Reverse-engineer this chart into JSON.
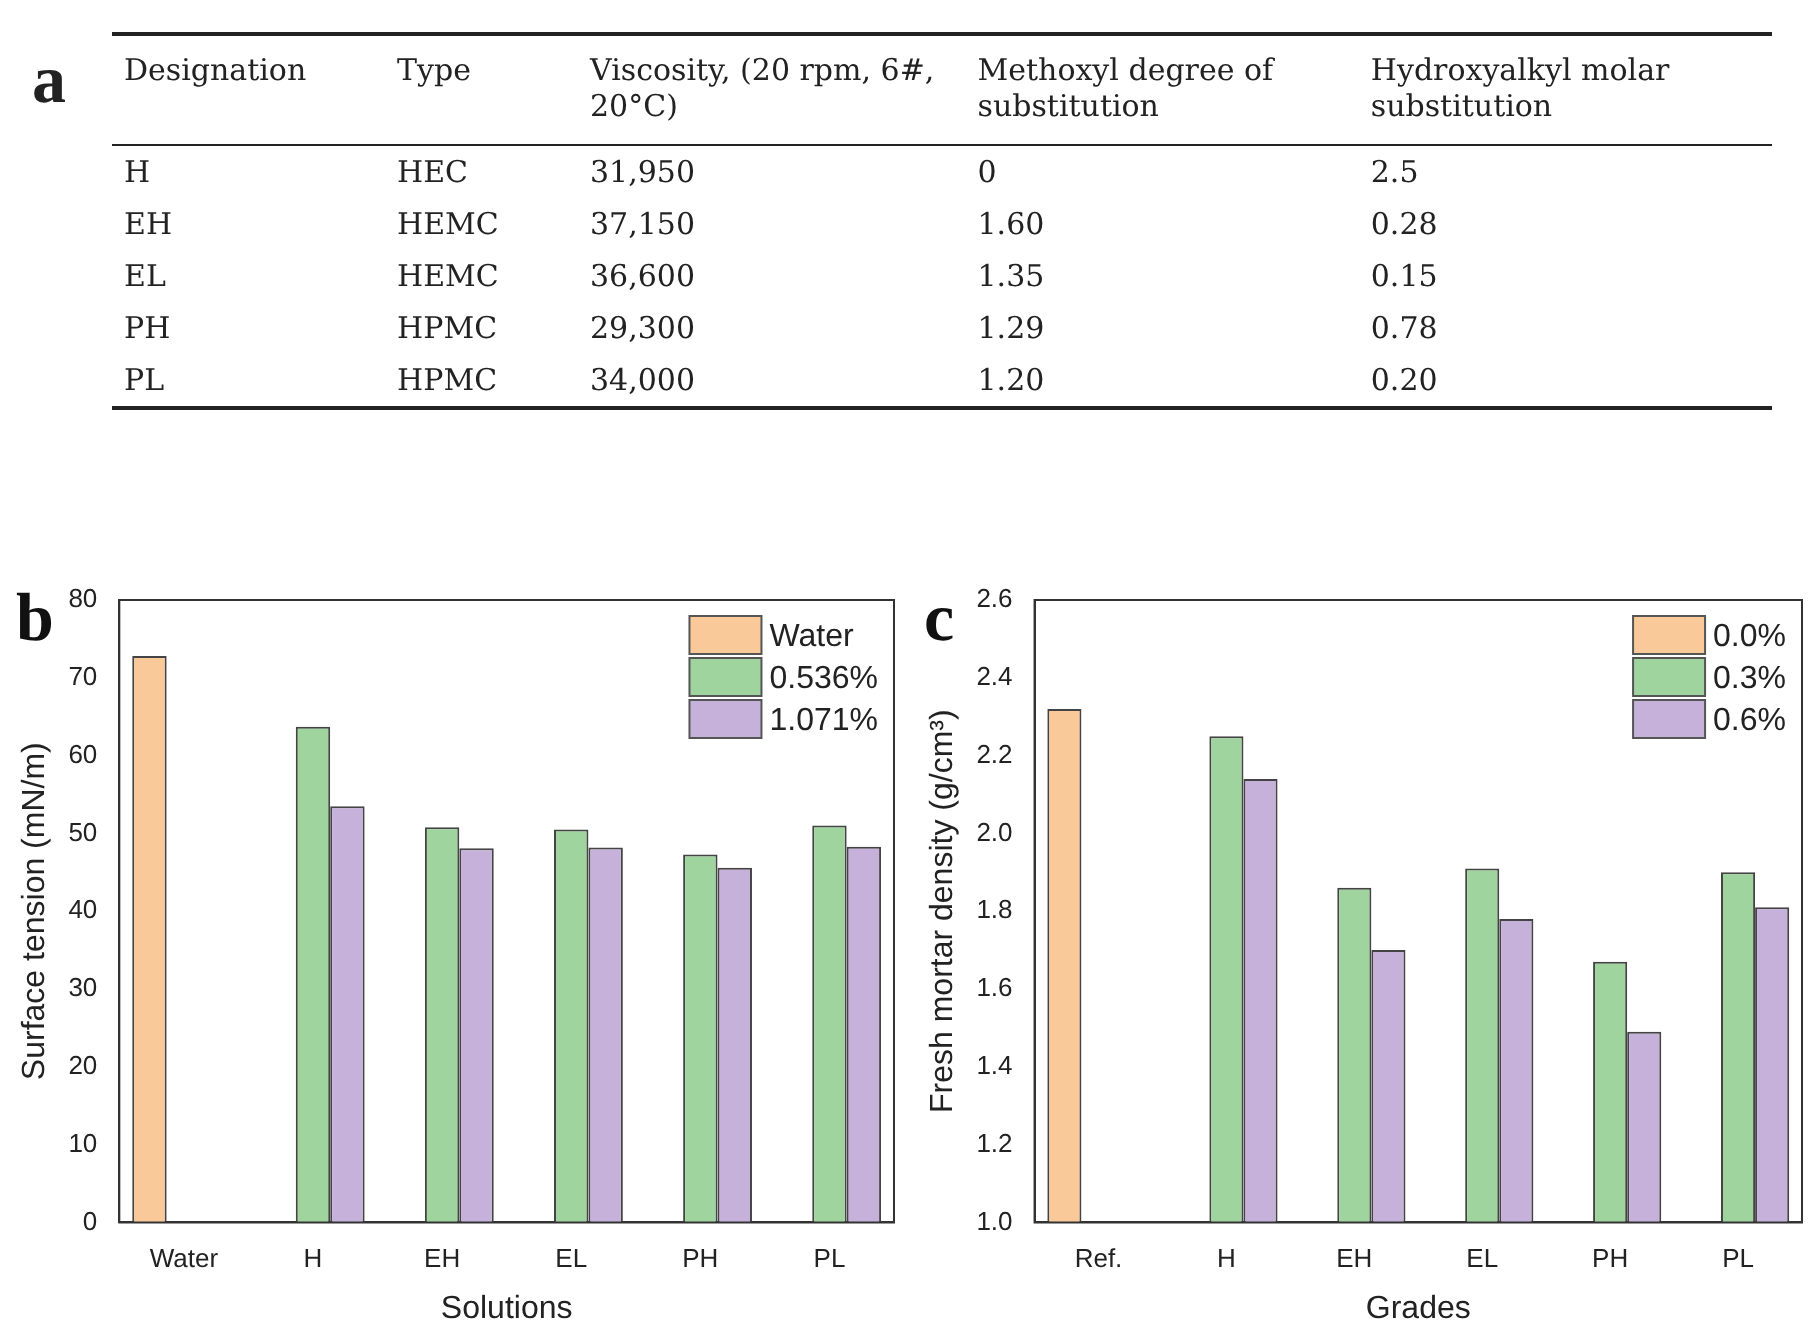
{
  "chart_data": [
    {
      "type": "other",
      "title": "a",
      "categories": [
        "Designation",
        "Type",
        "Viscosity, (20 rpm, 6#, 20°C)",
        "Methoxyl degree of substitution",
        "Hydroxyalkyl molar substitution"
      ],
      "annotations": [
        "H",
        "HEC",
        "31,950",
        "0",
        "2.5",
        "EH",
        "HEMC",
        "37,150",
        "1.60",
        "0.28",
        "EL",
        "HEMC",
        "36,600",
        "1.35",
        "0.15",
        "PH",
        "HPMC",
        "29,300",
        "1.29",
        "0.78",
        "PL",
        "HPMC",
        "34,000",
        "1.20",
        "0.20"
      ]
    },
    {
      "type": "bar",
      "title": "b",
      "xlabel": "Solutions",
      "ylabel": "Surface tension (mN/m)",
      "categories": [
        "Water",
        "H",
        "EH",
        "EL",
        "PH",
        "PL"
      ],
      "series": [
        {
          "name": "Water",
          "color": "#f9c99a",
          "values": [
            72.8,
            null,
            null,
            null,
            null,
            null
          ]
        },
        {
          "name": "0.536%",
          "color": "#9fd49f",
          "values": [
            null,
            63.7,
            50.8,
            50.5,
            47.3,
            51.0
          ]
        },
        {
          "name": "1.071%",
          "color": "#c5b1d9",
          "values": [
            null,
            53.5,
            48.1,
            48.2,
            45.6,
            48.3
          ]
        }
      ],
      "ylim": [
        0,
        80
      ],
      "yticks": [
        0,
        10,
        20,
        30,
        40,
        50,
        60,
        70,
        80
      ],
      "legend": "top right"
    },
    {
      "type": "bar",
      "title": "c",
      "xlabel": "Grades",
      "ylabel": "Fresh mortar density (g/cm³)",
      "categories": [
        "Ref.",
        "H",
        "EH",
        "EL",
        "PH",
        "PL"
      ],
      "series": [
        {
          "name": "0.0%",
          "color": "#f9c99a",
          "values": [
            2.32,
            null,
            null,
            null,
            null,
            null
          ]
        },
        {
          "name": "0.3%",
          "color": "#9fd49f",
          "values": [
            null,
            2.25,
            1.86,
            1.91,
            1.67,
            1.9
          ]
        },
        {
          "name": "0.6%",
          "color": "#c5b1d9",
          "values": [
            null,
            2.14,
            1.7,
            1.78,
            1.49,
            1.81
          ]
        }
      ],
      "ylim": [
        1.0,
        2.6
      ],
      "yticks": [
        {
          "value": 1.0,
          "label": "1.0"
        },
        {
          "value": 1.2,
          "label": "1.2"
        },
        {
          "value": 1.4,
          "label": "1.4"
        },
        {
          "value": 1.6,
          "label": "1.6"
        },
        {
          "value": 1.8,
          "label": "1.8"
        },
        {
          "value": 2.0,
          "label": "2.0"
        },
        {
          "value": 2.2,
          "label": "2.2"
        },
        {
          "value": 2.4,
          "label": "2.4"
        },
        {
          "value": 2.6,
          "label": "2.6"
        }
      ],
      "legend": "top right"
    }
  ]
}
